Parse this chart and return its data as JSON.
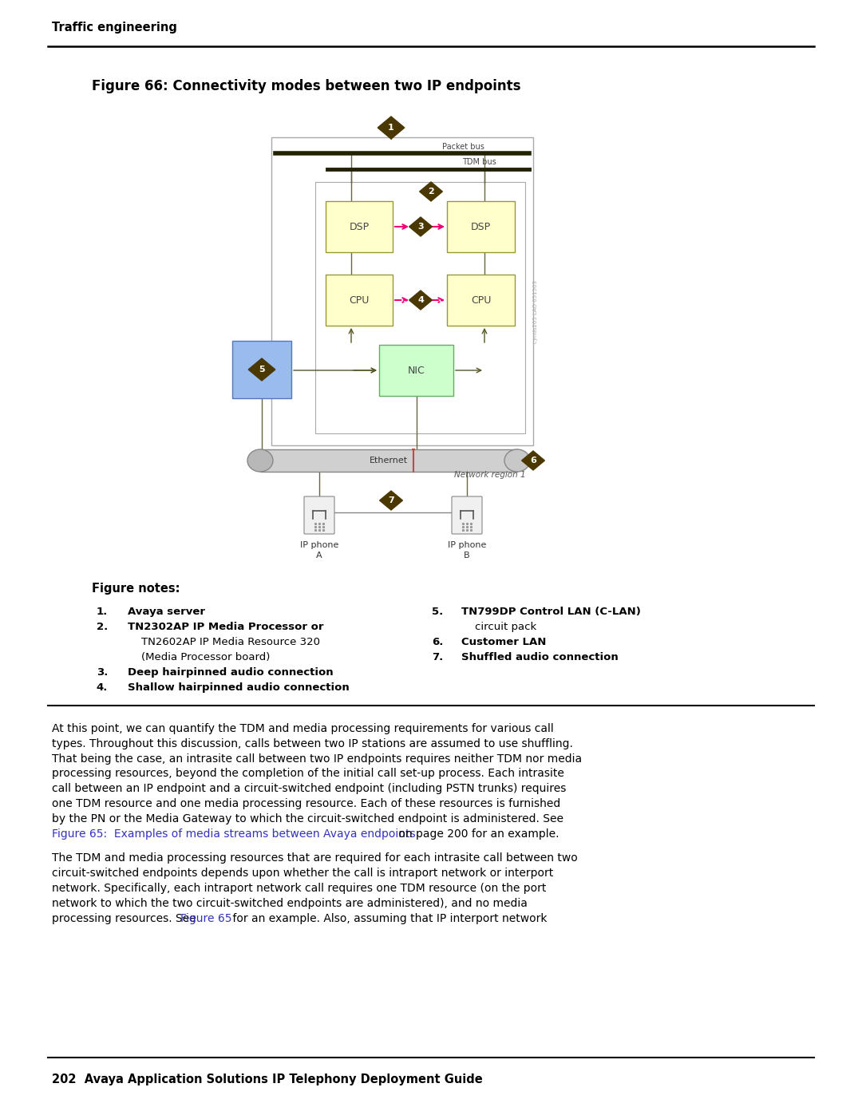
{
  "page_title": "Traffic engineering",
  "figure_title": "Figure 66: Connectivity modes between two IP endpoints",
  "figure_notes_title": "Figure notes:",
  "diamond_color": "#4a3800",
  "diamond_text_color": "#ffffff",
  "box_bg_yellow": "#ffffcc",
  "box_bg_green": "#ccffcc",
  "box_bg_blue": "#99bbee",
  "box_border_yellow": "#999933",
  "box_border_green": "#66aa66",
  "box_border_blue": "#5577bb",
  "arrow_magenta": "#ee0077",
  "arrow_dark": "#555522",
  "bus_color": "#222200",
  "line_color": "#666644",
  "ethernet_fill": "#d0d0d0",
  "ethernet_border": "#888888",
  "server_box_border": "#aaaaaa",
  "module_box_border": "#aaaaaa",
  "watermark_text": "cynds205 LAO 051503",
  "link_color": "#3333bb",
  "bg_color": "#ffffff",
  "text_color": "#000000",
  "footer_text": "202  Avaya Application Solutions IP Telephony Deployment Guide"
}
